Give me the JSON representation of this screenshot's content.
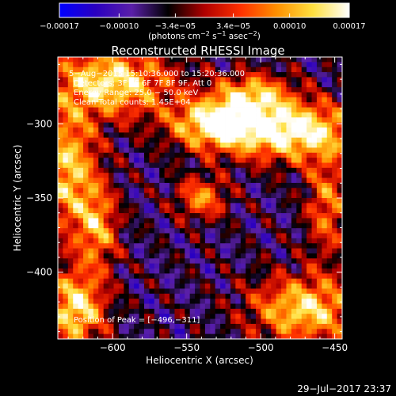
{
  "chart_data": {
    "type": "heatmap",
    "title": "Reconstructed RHESSI Image",
    "xlabel": "Heliocentric X (arcsec)",
    "ylabel": "Heliocentric Y (arcsec)",
    "xlim": [
      -637,
      -445
    ],
    "ylim": [
      -445,
      -255
    ],
    "x_ticks": [
      -600,
      -550,
      -500,
      -450
    ],
    "x_tick_labels": [
      "−600",
      "−550",
      "−500",
      "−450"
    ],
    "y_ticks": [
      -400,
      -350,
      -300
    ],
    "y_tick_labels": [
      "−400",
      "−350",
      "−300"
    ],
    "colorbar": {
      "range": [
        -0.00017,
        0.00017
      ],
      "tick_values": [
        -0.00017,
        -0.0001,
        -3.4e-05,
        3.4e-05,
        0.0001,
        0.00017
      ],
      "tick_labels": [
        "−0.00017",
        "−0.00010",
        "−3.4e−05",
        "3.4e−05",
        "0.00010",
        "0.00017"
      ],
      "unit_main": "(photons cm",
      "unit_sup1": "−2",
      "unit_mid": " s",
      "unit_sup2": "−1",
      "unit_mid2": " asec",
      "unit_sup3": "−2",
      "unit_end": ")",
      "colors": [
        "#0000ff",
        "#2a00c0",
        "#5a1fa8",
        "#000000",
        "#b00000",
        "#ff3000",
        "#ff9000",
        "#ffe040",
        "#ffffff"
      ]
    },
    "annotations": [
      "5−Aug−2015 15:10:36.000 to 15:20:36.000",
      "Detectors: 3F 5F 6F 7F 8F 9F, Att 0",
      "Energy Range: 25.0 − 50.0 keV",
      "Clean    Total counts: 1.45E+04"
    ],
    "peak_label": "Position of Peak = [−496,−311]",
    "peak": [
      -496,
      -311
    ],
    "sources": [
      {
        "x": -478,
        "y": -305,
        "sx": 30,
        "sy": 14,
        "a": 0.9
      },
      {
        "x": -530,
        "y": -300,
        "sx": 22,
        "sy": 12,
        "a": 0.85
      },
      {
        "x": -600,
        "y": -272,
        "sx": 28,
        "sy": 16,
        "a": 0.8
      },
      {
        "x": -630,
        "y": -330,
        "sx": 14,
        "sy": 30,
        "a": 0.7
      },
      {
        "x": -610,
        "y": -370,
        "sx": 10,
        "sy": 20,
        "a": 0.55
      },
      {
        "x": -625,
        "y": -425,
        "sx": 14,
        "sy": 18,
        "a": 0.8
      },
      {
        "x": -470,
        "y": -425,
        "sx": 26,
        "sy": 16,
        "a": 0.75
      },
      {
        "x": -540,
        "y": -350,
        "sx": 12,
        "sy": 10,
        "a": 0.55
      },
      {
        "x": -455,
        "y": -355,
        "sx": 10,
        "sy": 24,
        "a": 0.5
      },
      {
        "x": -505,
        "y": -280,
        "sx": 18,
        "sy": 10,
        "a": 0.6
      }
    ],
    "timestamp": "29−Jul−2017 23:37"
  }
}
